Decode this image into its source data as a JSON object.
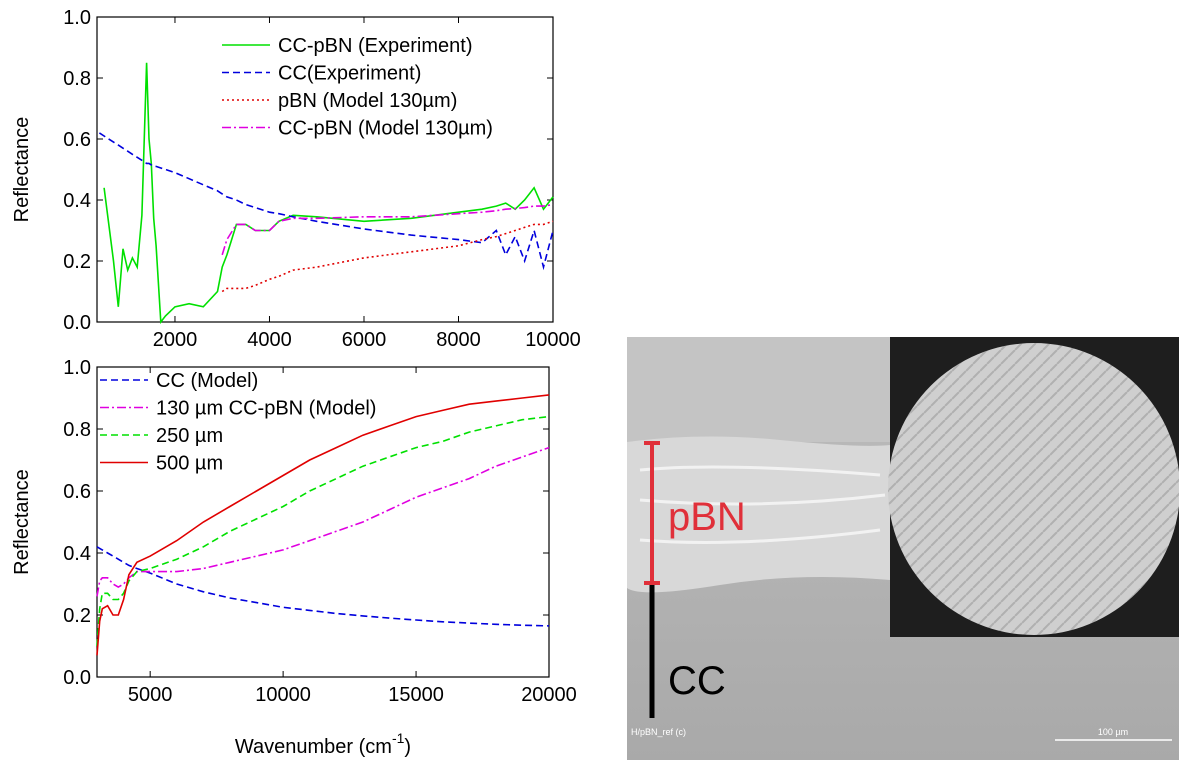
{
  "chart_data": [
    {
      "type": "line",
      "y_label": "Reflectance",
      "legend": "upper right",
      "xlim": [
        350,
        10000
      ],
      "ylim": [
        0,
        1
      ],
      "xticks": [
        2000,
        4000,
        6000,
        8000,
        10000
      ],
      "yticks": [
        {
          "value": 0,
          "label": "0.0"
        },
        0.2,
        0.4,
        0.6,
        0.8,
        {
          "value": 1,
          "label": "1.0"
        }
      ],
      "x": [
        400,
        500,
        700,
        800,
        900,
        1000,
        1100,
        1200,
        1300,
        1400,
        1450,
        1500,
        1550,
        1600,
        1700,
        1800,
        2000,
        2300,
        2600,
        2900,
        3000,
        3100,
        3300,
        3500,
        3700,
        4000,
        4200,
        4500,
        5000,
        6000,
        7000,
        8000,
        8500,
        8800,
        9000,
        9200,
        9400,
        9600,
        9800,
        10000
      ],
      "series": [
        {
          "name": "CC-pBN (Experiment)",
          "color": "#00e000",
          "dash": "solid",
          "values": [
            null,
            0.44,
            0.2,
            0.05,
            0.24,
            0.17,
            0.21,
            0.18,
            0.35,
            0.85,
            0.6,
            0.52,
            0.34,
            0.25,
            0.0,
            0.02,
            0.05,
            0.06,
            0.05,
            0.1,
            0.18,
            0.22,
            0.32,
            0.32,
            0.3,
            0.3,
            0.33,
            0.35,
            0.345,
            0.33,
            0.34,
            0.36,
            0.37,
            0.38,
            0.39,
            0.37,
            0.4,
            0.44,
            0.37,
            0.41
          ]
        },
        {
          "name": "CC(Experiment)",
          "color": "#0000dd",
          "dash": "dashed",
          "values": [
            0.62,
            0.61,
            0.59,
            0.58,
            0.57,
            0.56,
            0.55,
            0.54,
            0.53,
            0.52,
            0.52,
            0.515,
            0.51,
            0.51,
            0.505,
            0.5,
            0.49,
            0.47,
            0.45,
            0.43,
            0.42,
            0.41,
            0.4,
            0.385,
            0.375,
            0.36,
            0.355,
            0.345,
            0.33,
            0.305,
            0.285,
            0.27,
            0.26,
            0.3,
            0.22,
            0.28,
            0.2,
            0.3,
            0.18,
            0.3
          ]
        },
        {
          "name": "pBN (Model 130µm)",
          "color": "#e00000",
          "dash": "dotted",
          "values": [
            null,
            null,
            null,
            null,
            null,
            null,
            null,
            null,
            null,
            null,
            null,
            null,
            null,
            null,
            null,
            null,
            null,
            null,
            null,
            null,
            0.1,
            0.11,
            0.11,
            0.11,
            0.12,
            0.14,
            0.15,
            0.17,
            0.18,
            0.21,
            0.23,
            0.25,
            0.27,
            0.28,
            0.29,
            0.3,
            0.31,
            0.32,
            0.32,
            0.33
          ]
        },
        {
          "name": "CC-pBN (Model 130µm)",
          "color": "#e000e0",
          "dash": "dashdot",
          "values": [
            null,
            null,
            null,
            null,
            null,
            null,
            null,
            null,
            null,
            null,
            null,
            null,
            null,
            null,
            null,
            null,
            null,
            null,
            null,
            null,
            0.22,
            0.27,
            0.32,
            0.32,
            0.3,
            0.3,
            0.33,
            0.34,
            0.34,
            0.345,
            0.345,
            0.355,
            0.36,
            0.365,
            0.37,
            0.372,
            0.375,
            0.38,
            0.38,
            0.385
          ]
        }
      ]
    },
    {
      "type": "line",
      "y_label": "Reflectance",
      "x_label": [
        "Wavenumber (cm",
        "-1",
        ")"
      ],
      "legend": "upper left",
      "xlim": [
        3000,
        20000
      ],
      "ylim": [
        0,
        1
      ],
      "xticks": [
        5000,
        10000,
        15000,
        20000
      ],
      "yticks": [
        {
          "value": 0,
          "label": "0.0"
        },
        0.2,
        0.4,
        0.6,
        0.8,
        {
          "value": 1,
          "label": "1.0"
        }
      ],
      "x": [
        3000,
        3100,
        3200,
        3400,
        3600,
        3800,
        4000,
        4200,
        4500,
        5000,
        6000,
        7000,
        8000,
        9000,
        10000,
        11000,
        12000,
        13000,
        14000,
        15000,
        16000,
        17000,
        18000,
        19000,
        20000
      ],
      "series": [
        {
          "name": "CC (Model)",
          "color": "#0000dd",
          "dash": "dashed",
          "values": [
            0.42,
            0.415,
            0.41,
            0.4,
            0.39,
            0.38,
            0.37,
            0.36,
            0.35,
            0.335,
            0.3,
            0.275,
            0.255,
            0.24,
            0.225,
            0.215,
            0.205,
            0.197,
            0.19,
            0.184,
            0.178,
            0.174,
            0.17,
            0.167,
            0.165
          ]
        },
        {
          "name": "130 µm CC-pBN (Model)",
          "color": "#e000e0",
          "dash": "dashdot",
          "values": [
            0.26,
            0.31,
            0.32,
            0.32,
            0.3,
            0.29,
            0.3,
            0.32,
            0.34,
            0.34,
            0.34,
            0.35,
            0.37,
            0.39,
            0.41,
            0.44,
            0.47,
            0.5,
            0.54,
            0.58,
            0.61,
            0.64,
            0.68,
            0.71,
            0.74
          ]
        },
        {
          "name": "250 µm",
          "color": "#00e000",
          "dash": "dashed",
          "values": [
            0.1,
            0.22,
            0.27,
            0.27,
            0.25,
            0.25,
            0.27,
            0.31,
            0.34,
            0.35,
            0.38,
            0.42,
            0.47,
            0.51,
            0.55,
            0.6,
            0.64,
            0.68,
            0.71,
            0.74,
            0.76,
            0.79,
            0.81,
            0.83,
            0.84
          ]
        },
        {
          "name": "500 µm",
          "color": "#e00000",
          "dash": "solid",
          "values": [
            0.07,
            0.18,
            0.22,
            0.23,
            0.2,
            0.2,
            0.25,
            0.33,
            0.37,
            0.39,
            0.44,
            0.5,
            0.55,
            0.6,
            0.65,
            0.7,
            0.74,
            0.78,
            0.81,
            0.84,
            0.86,
            0.88,
            0.89,
            0.9,
            0.91
          ]
        }
      ]
    }
  ],
  "micrograph": {
    "layer_top": "pBN",
    "layer_bottom": "CC",
    "caption": "H/pBN_ref (c)",
    "scale": "100 µm"
  }
}
